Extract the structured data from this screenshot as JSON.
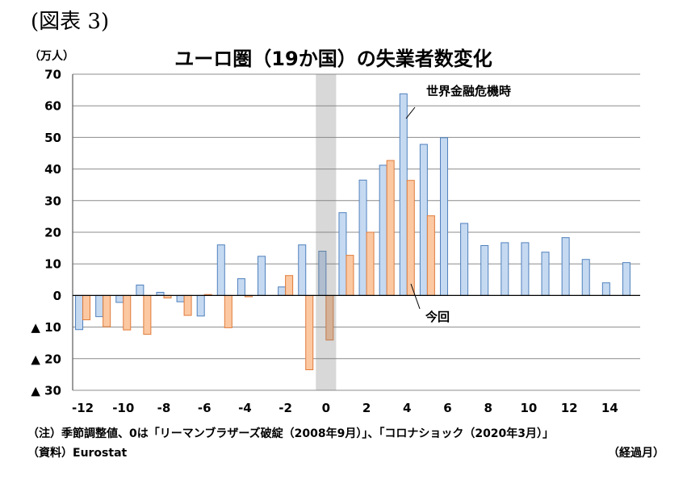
{
  "figure_label": "(図表 3)",
  "footer": {
    "note": "（注）季節調整値、0は「リーマンブラザーズ破綻（2008年9月）」、「コロナショック（2020年3月）」",
    "source": "（資料）Eurostat"
  },
  "chart_data": {
    "type": "bar",
    "title": "ユーロ圏（19か国）の失業者数変化",
    "ylabel": "（万人）",
    "xlabel": "（経過月）",
    "x": [
      -12,
      -11,
      -10,
      -9,
      -8,
      -7,
      -6,
      -5,
      -4,
      -3,
      -2,
      -1,
      0,
      1,
      2,
      3,
      4,
      5,
      6,
      7,
      8,
      9,
      10,
      11,
      12,
      13,
      14,
      15
    ],
    "xticks": [
      -12,
      -10,
      -8,
      -6,
      -4,
      -2,
      0,
      2,
      4,
      6,
      8,
      10,
      12,
      14
    ],
    "xtick_labels": [
      "-12",
      "-10",
      "-8",
      "-6",
      "-4",
      "-2",
      "0",
      "2",
      "4",
      "6",
      "8",
      "10",
      "12",
      "14"
    ],
    "ylim": [
      -30,
      70
    ],
    "yticks": [
      70,
      60,
      50,
      40,
      30,
      20,
      10,
      0,
      -10,
      -20,
      -30
    ],
    "ytick_labels": [
      "70",
      "60",
      "50",
      "40",
      "30",
      "20",
      "10",
      "0",
      "▲ 10",
      "▲ 20",
      "▲ 30"
    ],
    "grid": true,
    "highlight_x": 0,
    "series": [
      {
        "name": "世界金融危機時",
        "fill": "#c5d9f1",
        "stroke": "#4f81bd",
        "values": [
          -10.8,
          -6.7,
          -2.2,
          3.3,
          1.0,
          -2.0,
          -6.5,
          16.0,
          5.3,
          12.4,
          2.7,
          16.0,
          14.0,
          26.2,
          36.5,
          41.2,
          63.8,
          47.8,
          49.9,
          22.8,
          15.8,
          16.7,
          16.7,
          13.7,
          18.3,
          11.4,
          4.0,
          10.4
        ]
      },
      {
        "name": "今回",
        "fill": "#fbc8a2",
        "stroke": "#e07b39",
        "values": [
          -7.7,
          -9.9,
          -10.9,
          -12.3,
          -0.8,
          -6.3,
          0.3,
          -10.2,
          -0.4,
          0.0,
          6.3,
          -23.5,
          -14.1,
          12.7,
          20.0,
          42.7,
          36.4,
          25.2,
          null,
          null,
          null,
          null,
          null,
          null,
          null,
          null,
          null,
          null
        ]
      }
    ]
  }
}
